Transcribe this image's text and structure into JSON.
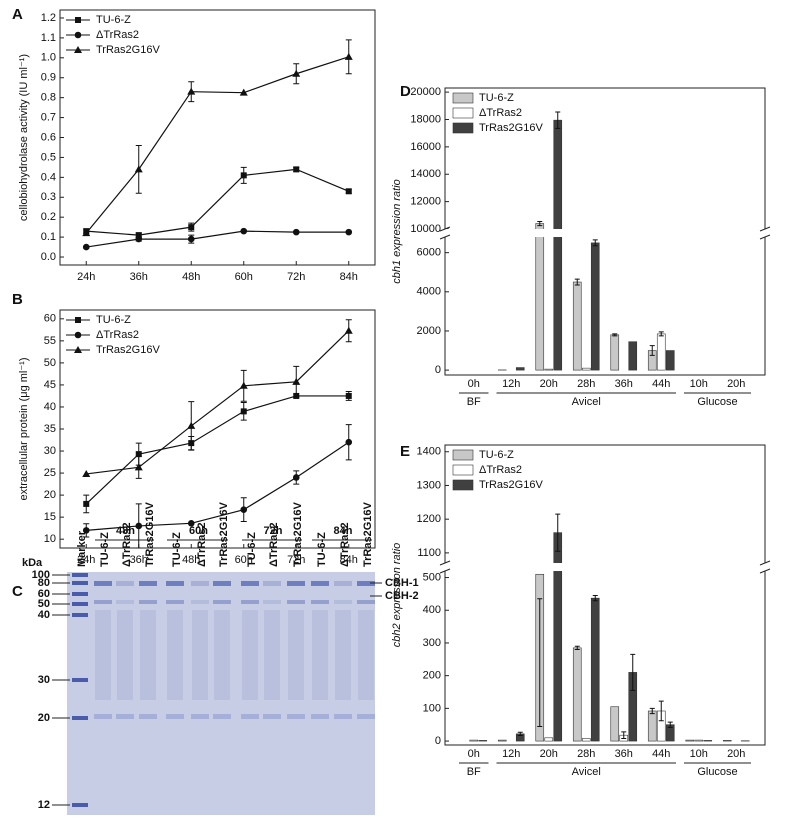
{
  "chart_data": [
    {
      "type": "line",
      "label": "A",
      "ylabel": "cellobiohydrolase activity (IU ml⁻¹)",
      "categories": [
        "24h",
        "36h",
        "48h",
        "60h",
        "72h",
        "84h"
      ],
      "ylim": [
        -0.04,
        1.24
      ],
      "yticks": [
        {
          "value": 0,
          "label": "0.0"
        },
        0.1,
        0.2,
        0.3,
        0.4,
        0.5,
        0.6,
        0.7,
        0.8,
        0.9,
        {
          "value": 1,
          "label": "1.0"
        },
        1.1,
        1.2
      ],
      "legend": "upper left",
      "series": [
        {
          "name": "TU-6-Z",
          "color": "#111111",
          "marker": "square",
          "values": [
            0.13,
            0.11,
            0.15,
            0.41,
            0.44,
            0.33
          ],
          "errors": [
            0.01,
            0.01,
            0.02,
            0.04,
            0.01,
            0.01
          ]
        },
        {
          "name": "ΔTrRas2",
          "color": "#111111",
          "marker": "circle",
          "values": [
            0.05,
            0.09,
            0.09,
            0.13,
            0.125,
            0.125
          ],
          "errors": [
            0.005,
            0.01,
            0.02,
            0,
            0,
            0
          ]
        },
        {
          "name": "TrRas2G16V",
          "color": "#111111",
          "marker": "triangle",
          "values": [
            0.12,
            0.44,
            0.83,
            0.825,
            0.92,
            1.005
          ],
          "errors": [
            0,
            0.12,
            0.05,
            0,
            0.05,
            0.085
          ]
        }
      ]
    },
    {
      "type": "line",
      "label": "B",
      "ylabel": "extracellular protein (μg ml⁻¹)",
      "categories": [
        "24h",
        "36h",
        "48h",
        "60h",
        "72h",
        "84h"
      ],
      "ylim": [
        8,
        62
      ],
      "yticks": [
        10,
        15,
        20,
        25,
        30,
        35,
        40,
        45,
        50,
        55,
        60
      ],
      "legend": "upper left",
      "series": [
        {
          "name": "TU-6-Z",
          "color": "#111111",
          "marker": "square",
          "values": [
            18,
            29.3,
            31.8,
            39,
            42.5,
            42.5
          ],
          "errors": [
            2,
            2.5,
            1.5,
            2,
            0,
            1
          ]
        },
        {
          "name": "ΔTrRas2",
          "color": "#111111",
          "marker": "circle",
          "values": [
            12,
            13,
            13.6,
            16.7,
            24,
            32
          ],
          "errors": [
            1.5,
            5,
            0,
            2.7,
            1.5,
            4
          ]
        },
        {
          "name": "TrRas2G16V",
          "color": "#111111",
          "marker": "triangle",
          "values": [
            24.8,
            26.3,
            35.7,
            44.8,
            45.7,
            57.3
          ],
          "errors": [
            0,
            2.5,
            5.5,
            3.5,
            3.5,
            2.5
          ]
        }
      ]
    },
    {
      "type": "bar",
      "label": "D",
      "ylabel": "cbh1 expression ratio",
      "categories": [
        "0h",
        "12h",
        "20h",
        "28h",
        "36h",
        "44h",
        "10h",
        "20h"
      ],
      "group_labels": [
        "BF",
        "Avicel",
        "Glucose"
      ],
      "group_sizes": [
        1,
        5,
        2
      ],
      "ylim": [
        -250,
        20300
      ],
      "axis_break": [
        6800,
        10000
      ],
      "yticks": [
        0,
        2000,
        4000,
        6000,
        10000,
        12000,
        14000,
        16000,
        18000,
        20000
      ],
      "legend": "upper left",
      "series": [
        {
          "name": "TU-6-Z",
          "color": "#c8c8c8",
          "values": [
            0,
            10,
            10400,
            4500,
            1800,
            1000,
            0,
            0
          ],
          "errors": [
            0,
            0,
            150,
            150,
            50,
            250,
            0,
            0
          ]
        },
        {
          "name": "ΔTrRas2",
          "color": "#ffffff",
          "values": [
            0,
            0,
            50,
            100,
            0,
            1850,
            0,
            0
          ],
          "errors": [
            0,
            0,
            0,
            0,
            0,
            100,
            0,
            0
          ]
        },
        {
          "name": "TrRas2G16V",
          "color": "#404040",
          "values": [
            0,
            130,
            17950,
            6500,
            1450,
            1000,
            0,
            0
          ],
          "errors": [
            0,
            0,
            600,
            150,
            0,
            0,
            0,
            0
          ]
        }
      ]
    },
    {
      "type": "bar",
      "label": "E",
      "ylabel": "cbh2 expression ratio",
      "categories": [
        "0h",
        "12h",
        "20h",
        "28h",
        "36h",
        "44h",
        "10h",
        "20h"
      ],
      "group_labels": [
        "BF",
        "Avicel",
        "Glucose"
      ],
      "group_sizes": [
        1,
        5,
        2
      ],
      "ylim": [
        -12,
        1420
      ],
      "axis_break": [
        520,
        1070
      ],
      "yticks": [
        0,
        100,
        200,
        300,
        400,
        500,
        1100,
        1200,
        1300,
        1400
      ],
      "legend": "upper left",
      "series": [
        {
          "name": "TU-6-Z",
          "color": "#c8c8c8",
          "values": [
            0,
            3,
            510,
            285,
            105,
            92,
            3,
            2
          ],
          "errors": [
            0,
            0,
            75,
            5,
            0,
            8,
            0,
            0
          ]
        },
        {
          "name": "ΔTrRas2",
          "color": "#ffffff",
          "values": [
            3,
            0,
            10,
            8,
            18,
            92,
            3,
            0
          ],
          "errors": [
            0,
            0,
            0,
            0,
            10,
            30,
            0,
            0
          ]
        },
        {
          "name": "TrRas2G16V",
          "color": "#404040",
          "values": [
            2,
            22,
            1160,
            437,
            210,
            50,
            2,
            1
          ],
          "errors": [
            0,
            5,
            55,
            8,
            55,
            8,
            0,
            0
          ]
        }
      ]
    }
  ],
  "gel": {
    "label": "C",
    "unit": "kDa",
    "marker_lane": "Marker",
    "timepoints": [
      "48h",
      "60h",
      "72h",
      "84h"
    ],
    "lanes": [
      "TU-6-Z",
      "ΔTrRas2",
      "TrRas2G16V"
    ],
    "marker_kda": [
      100,
      80,
      60,
      50,
      40,
      30,
      20,
      12
    ],
    "bands": [
      "CBH-1",
      "CBH-2"
    ]
  }
}
